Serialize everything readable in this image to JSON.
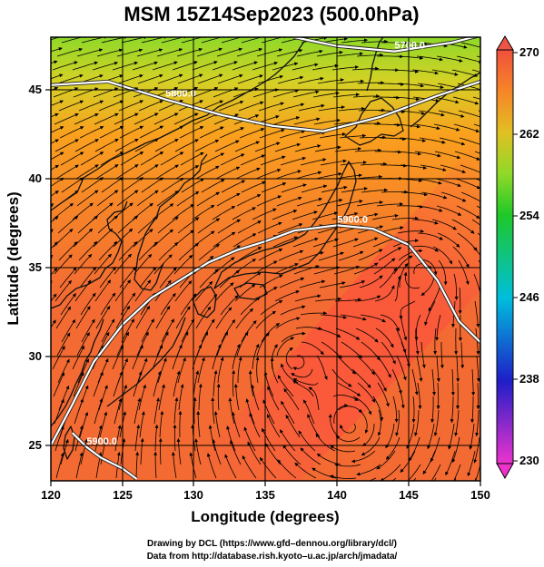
{
  "title": "MSM 15Z14Sep2023 (500.0hPa)",
  "xlabel": "Longitude (degrees)",
  "ylabel": "Latitude  (degrees)",
  "x_ticks": [
    "120",
    "125",
    "130",
    "135",
    "140",
    "145",
    "150"
  ],
  "y_ticks": [
    "25",
    "30",
    "35",
    "40",
    "45"
  ],
  "colorbar": {
    "ticks": [
      "230",
      "238",
      "246",
      "254",
      "262",
      "270"
    ],
    "min": 230,
    "max": 270
  },
  "contour_labels": [
    "5700.0",
    "5800.0",
    "5900.0",
    "5900.0"
  ],
  "credits": {
    "line1": "Drawing by DCL (https://www.gfd–dennou.org/library/dcl/)",
    "line2": "Data from http://database.rish.kyoto–u.ac.jp/arch/jmadata/"
  },
  "chart_data": {
    "type": "heatmap",
    "variable": "temperature at 500.0hPa with wind streamlines and geopotential height contours",
    "xlim": [
      120,
      150
    ],
    "ylim": [
      22.5,
      47.5
    ],
    "color_range": [
      230,
      270
    ],
    "contours": [
      {
        "label": "5700.0",
        "points": [
          [
            137,
            47.5
          ],
          [
            140,
            47.0
          ],
          [
            144,
            46.7
          ],
          [
            148,
            47.2
          ],
          [
            150,
            47.6
          ]
        ]
      },
      {
        "label": "5800.0",
        "points": [
          [
            120,
            44.8
          ],
          [
            124,
            45.0
          ],
          [
            128,
            44.0
          ],
          [
            132,
            43.1
          ],
          [
            135.5,
            42.5
          ],
          [
            139,
            42.2
          ],
          [
            143,
            43.0
          ],
          [
            147,
            44.2
          ],
          [
            150,
            45.0
          ]
        ]
      },
      {
        "label": "5900.0",
        "points": [
          [
            120,
            24.5
          ],
          [
            121.5,
            26.8
          ],
          [
            123,
            29.2
          ],
          [
            125,
            31.3
          ],
          [
            127,
            32.8
          ],
          [
            129,
            33.8
          ],
          [
            131,
            34.8
          ],
          [
            133,
            35.5
          ],
          [
            135,
            36.0
          ],
          [
            137,
            36.6
          ],
          [
            140,
            36.9
          ],
          [
            142.5,
            36.7
          ],
          [
            145,
            35.8
          ],
          [
            147,
            33.8
          ],
          [
            148.5,
            31.5
          ],
          [
            150,
            30.3
          ]
        ]
      },
      {
        "label": "5900.0",
        "points": [
          [
            121.5,
            25.2
          ],
          [
            122.5,
            24.4
          ],
          [
            123.5,
            23.8
          ],
          [
            125,
            23.2
          ],
          [
            126,
            22.6
          ]
        ]
      }
    ],
    "gradient_stops": [
      {
        "lat": 47.5,
        "value": 258
      },
      {
        "lat": 45,
        "value": 261
      },
      {
        "lat": 42,
        "value": 264
      },
      {
        "lat": 38,
        "value": 266
      },
      {
        "lat": 33,
        "value": 268
      },
      {
        "lat": 22.5,
        "value": 268
      }
    ],
    "warm_band_value": 270,
    "vortices": [
      [
        141,
        25.5
      ],
      [
        137,
        29.5
      ],
      [
        146,
        34.5
      ]
    ]
  }
}
